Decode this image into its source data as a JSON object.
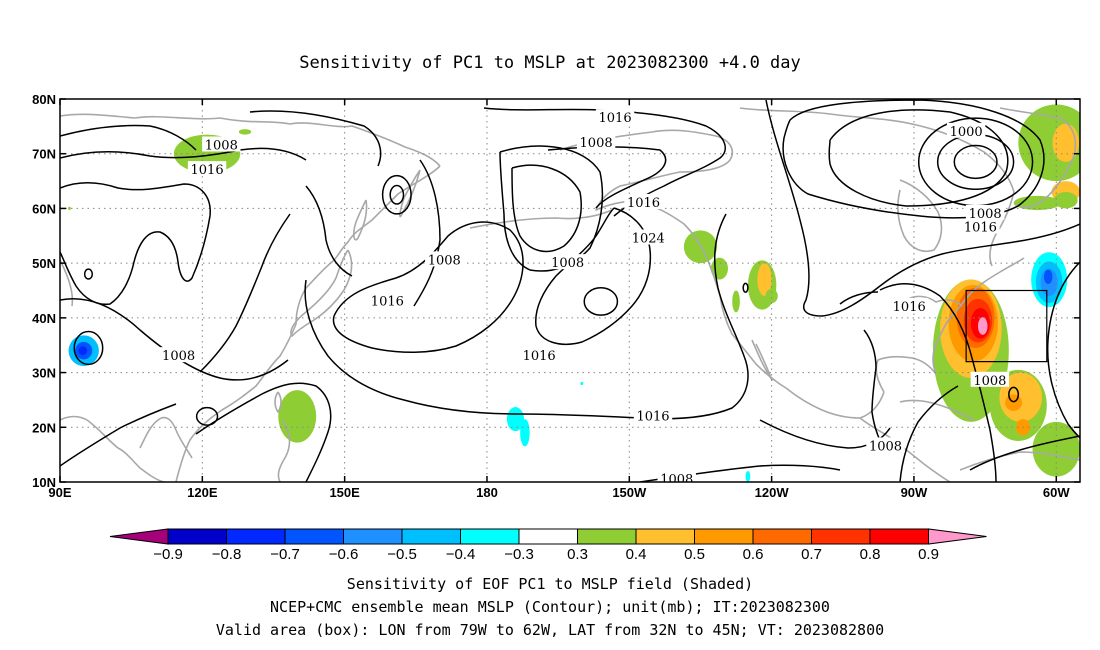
{
  "title": "Sensitivity of PC1 to MSLP at 2023082300 +4.0 day",
  "map": {
    "lon_range": [
      90,
      305
    ],
    "lat_range": [
      10,
      80
    ],
    "lon_ticks": [
      {
        "lon": 90,
        "label": "90E"
      },
      {
        "lon": 120,
        "label": "120E"
      },
      {
        "lon": 150,
        "label": "150E"
      },
      {
        "lon": 180,
        "label": "180"
      },
      {
        "lon": 210,
        "label": "150W"
      },
      {
        "lon": 240,
        "label": "120W"
      },
      {
        "lon": 270,
        "label": "90W"
      },
      {
        "lon": 300,
        "label": "60W"
      }
    ],
    "lat_ticks": [
      {
        "lat": 80,
        "label": "80N"
      },
      {
        "lat": 70,
        "label": "70N"
      },
      {
        "lat": 60,
        "label": "60N"
      },
      {
        "lat": 50,
        "label": "50N"
      },
      {
        "lat": 40,
        "label": "40N"
      },
      {
        "lat": 30,
        "label": "30N"
      },
      {
        "lat": 20,
        "label": "20N"
      },
      {
        "lat": 10,
        "label": "10N"
      }
    ],
    "grid": "dotted",
    "valid_box": {
      "lon_min": 281,
      "lon_max": 298,
      "lat_min": 32,
      "lat_max": 45
    },
    "contour_labels": [
      {
        "text": "1016",
        "lon": 207,
        "lat": 76.5
      },
      {
        "text": "1008",
        "lon": 203,
        "lat": 72
      },
      {
        "text": "1000",
        "lon": 281,
        "lat": 74
      },
      {
        "text": "1008",
        "lon": 124,
        "lat": 71.5
      },
      {
        "text": "1016",
        "lon": 121,
        "lat": 67
      },
      {
        "text": "1016",
        "lon": 213,
        "lat": 61
      },
      {
        "text": "1008",
        "lon": 285,
        "lat": 59
      },
      {
        "text": "1016",
        "lon": 284,
        "lat": 56.5
      },
      {
        "text": "1024",
        "lon": 214,
        "lat": 54.5
      },
      {
        "text": "1008",
        "lon": 171,
        "lat": 50.5
      },
      {
        "text": "1008",
        "lon": 197,
        "lat": 50
      },
      {
        "text": "1016",
        "lon": 159,
        "lat": 43
      },
      {
        "text": "1016",
        "lon": 269,
        "lat": 42
      },
      {
        "text": "1008",
        "lon": 115,
        "lat": 33
      },
      {
        "text": "1016",
        "lon": 191,
        "lat": 33
      },
      {
        "text": "1008",
        "lon": 286,
        "lat": 28.5
      },
      {
        "text": "1016",
        "lon": 215,
        "lat": 22
      },
      {
        "text": "1008",
        "lon": 264,
        "lat": 16.5
      },
      {
        "text": "1008",
        "lon": 220,
        "lat": 10.5
      }
    ],
    "shaded_regions": [
      {
        "lon": 95,
        "lat": 34,
        "rx": 3.2,
        "ry": 2.8,
        "value": -0.5
      },
      {
        "lon": 95,
        "lat": 34,
        "rx": 1.8,
        "ry": 1.6,
        "value": -0.7
      },
      {
        "lon": 94.8,
        "lat": 34,
        "rx": 0.9,
        "ry": 0.8,
        "value": -0.8
      },
      {
        "lon": 121,
        "lat": 70,
        "rx": 7,
        "ry": 3.5,
        "value": 0.3
      },
      {
        "lon": 124.5,
        "lat": 71.5,
        "rx": 2,
        "ry": 1,
        "value": 0.4
      },
      {
        "lon": 92,
        "lat": 60,
        "rx": 0.3,
        "ry": 0.3,
        "value": 0.3
      },
      {
        "lon": 129,
        "lat": 74,
        "rx": 1.3,
        "ry": 0.5,
        "value": 0.3
      },
      {
        "lon": 140,
        "lat": 22,
        "rx": 4,
        "ry": 4.8,
        "value": 0.3
      },
      {
        "lon": 186,
        "lat": 21.5,
        "rx": 1.8,
        "ry": 2.2,
        "value": -0.4
      },
      {
        "lon": 188,
        "lat": 19,
        "rx": 1.0,
        "ry": 2.5,
        "value": -0.4
      },
      {
        "lon": 200,
        "lat": 28,
        "rx": 0.3,
        "ry": 0.3,
        "value": -0.4
      },
      {
        "lon": 225,
        "lat": 53,
        "rx": 3.5,
        "ry": 3,
        "value": 0.3
      },
      {
        "lon": 229,
        "lat": 49,
        "rx": 1.8,
        "ry": 2,
        "value": 0.3
      },
      {
        "lon": 238,
        "lat": 46,
        "rx": 3,
        "ry": 4.5,
        "value": 0.3
      },
      {
        "lon": 238.5,
        "lat": 47,
        "rx": 1.5,
        "ry": 3,
        "value": 0.4
      },
      {
        "lon": 240,
        "lat": 44,
        "rx": 1.3,
        "ry": 1.3,
        "value": 0.3
      },
      {
        "lon": 232.5,
        "lat": 43,
        "rx": 0.8,
        "ry": 2,
        "value": 0.3
      },
      {
        "lon": 282,
        "lat": 34,
        "rx": 8,
        "ry": 13,
        "value": 0.3
      },
      {
        "lon": 282,
        "lat": 38,
        "rx": 6.5,
        "ry": 9,
        "value": 0.4
      },
      {
        "lon": 282.5,
        "lat": 39,
        "rx": 5.2,
        "ry": 7,
        "value": 0.5
      },
      {
        "lon": 283,
        "lat": 40,
        "rx": 4,
        "ry": 5.5,
        "value": 0.6
      },
      {
        "lon": 283.5,
        "lat": 39.5,
        "rx": 3,
        "ry": 4,
        "value": 0.7
      },
      {
        "lon": 284,
        "lat": 39,
        "rx": 2,
        "ry": 2.8,
        "value": 0.8
      },
      {
        "lon": 284.5,
        "lat": 38.5,
        "rx": 1,
        "ry": 1.6,
        "value": 0.9
      },
      {
        "lon": 292,
        "lat": 24,
        "rx": 6,
        "ry": 6.5,
        "value": 0.3
      },
      {
        "lon": 292.5,
        "lat": 25.5,
        "rx": 4.5,
        "ry": 4.5,
        "value": 0.4
      },
      {
        "lon": 291,
        "lat": 24.5,
        "rx": 1.8,
        "ry": 1.5,
        "value": 0.5
      },
      {
        "lon": 293,
        "lat": 20,
        "rx": 1.5,
        "ry": 1.5,
        "value": 0.5
      },
      {
        "lon": 298.5,
        "lat": 47,
        "rx": 3.8,
        "ry": 5,
        "value": -0.4
      },
      {
        "lon": 298.5,
        "lat": 46.5,
        "rx": 2.8,
        "ry": 3.8,
        "value": -0.5
      },
      {
        "lon": 298.5,
        "lat": 46.5,
        "rx": 1.8,
        "ry": 2.5,
        "value": -0.6
      },
      {
        "lon": 298.3,
        "lat": 47.5,
        "rx": 0.9,
        "ry": 1.3,
        "value": -0.7
      },
      {
        "lon": 300,
        "lat": 72,
        "rx": 8,
        "ry": 7,
        "value": 0.3
      },
      {
        "lon": 302,
        "lat": 72,
        "rx": 2.8,
        "ry": 3.5,
        "value": 0.4
      },
      {
        "lon": 302,
        "lat": 63,
        "rx": 3,
        "ry": 2,
        "value": 0.4
      },
      {
        "lon": 302,
        "lat": 61.5,
        "rx": 2.5,
        "ry": 1.5,
        "value": 0.3
      },
      {
        "lon": 296,
        "lat": 61,
        "rx": 5,
        "ry": 1.3,
        "value": 0.3
      },
      {
        "lon": 300,
        "lat": 16,
        "rx": 5,
        "ry": 5,
        "value": 0.3
      },
      {
        "lon": 235,
        "lat": 11,
        "rx": 0.5,
        "ry": 1,
        "value": -0.4
      }
    ],
    "highs_lows": [
      {
        "type": "low",
        "lon": 161,
        "lat": 62.5,
        "rx": 3,
        "ry": 3.5
      },
      {
        "type": "low",
        "lon": 161,
        "lat": 62.5,
        "rx": 1.4,
        "ry": 1.7
      },
      {
        "type": "low",
        "lon": 283,
        "lat": 68.5,
        "rx": 12,
        "ry": 8
      },
      {
        "type": "low",
        "lon": 283,
        "lat": 68.5,
        "rx": 8,
        "ry": 5
      },
      {
        "type": "low",
        "lon": 283,
        "lat": 68.5,
        "rx": 4.5,
        "ry": 3
      },
      {
        "type": "high",
        "lon": 204,
        "lat": 43,
        "rx": 3.5,
        "ry": 2.5
      },
      {
        "type": "low",
        "lon": 96,
        "lat": 34.5,
        "rx": 3,
        "ry": 3
      },
      {
        "type": "low",
        "lon": 121,
        "lat": 22,
        "rx": 2.2,
        "ry": 1.6
      },
      {
        "type": "low",
        "lon": 291,
        "lat": 26,
        "rx": 1,
        "ry": 1.3
      },
      {
        "type": "low",
        "lon": 96,
        "lat": 48,
        "rx": 0.8,
        "ry": 0.9
      },
      {
        "type": "low",
        "lon": 234.5,
        "lat": 45.5,
        "rx": 0.5,
        "ry": 0.8
      }
    ]
  },
  "colorbar": {
    "colors": [
      "#a6007a",
      "#0000c8",
      "#0028ff",
      "#0055ff",
      "#1e90ff",
      "#00bfff",
      "#00ffff",
      "#ffffff",
      "#8ece34",
      "#ffbf2e",
      "#ff9900",
      "#ff6a00",
      "#ff3200",
      "#ff0000",
      "#ff99cc"
    ],
    "labels": [
      "-0.9",
      "-0.8",
      "-0.7",
      "-0.6",
      "-0.5",
      "-0.4",
      "-0.3",
      "0.3",
      "0.4",
      "0.5",
      "0.6",
      "0.7",
      "0.8",
      "0.9"
    ],
    "levels": [
      -0.9,
      -0.8,
      -0.7,
      -0.6,
      -0.5,
      -0.4,
      -0.3,
      0.3,
      0.4,
      0.5,
      0.6,
      0.7,
      0.8,
      0.9
    ]
  },
  "captions": [
    "Sensitivity of EOF PC1 to MSLP field (Shaded)",
    "NCEP+CMC ensemble mean MSLP (Contour); unit(mb); IT:2023082300",
    "Valid area (box): LON from 79W to 62W, LAT from 32N to 45N; VT: 2023082800"
  ]
}
